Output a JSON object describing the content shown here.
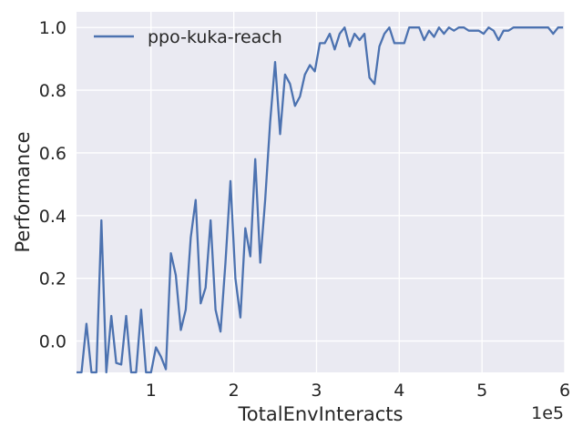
{
  "chart_data": {
    "type": "line",
    "title": "",
    "xlabel": "TotalEnvInteracts",
    "ylabel": "Performance",
    "x_offset_label": "1e5",
    "xlim": [
      0.1,
      6.0
    ],
    "ylim": [
      -0.1,
      1.05
    ],
    "x_ticks": [
      1,
      2,
      3,
      4,
      5,
      6
    ],
    "x_tick_labels": [
      "1",
      "2",
      "3",
      "4",
      "5",
      "6"
    ],
    "y_ticks": [
      0.0,
      0.2,
      0.4,
      0.6,
      0.8,
      1.0
    ],
    "y_tick_labels": [
      "0.0",
      "0.2",
      "0.4",
      "0.6",
      "0.8",
      "1.0"
    ],
    "grid": true,
    "legend_position": "top-left",
    "colors": {
      "background": "#eaeaf2",
      "grid": "#ffffff",
      "line": "#4c72b0"
    },
    "series": [
      {
        "name": "ppo-kuka-reach",
        "x": [
          0.1,
          0.16,
          0.22,
          0.28,
          0.34,
          0.4,
          0.46,
          0.52,
          0.58,
          0.64,
          0.7,
          0.76,
          0.82,
          0.88,
          0.94,
          1.0,
          1.06,
          1.12,
          1.18,
          1.24,
          1.3,
          1.36,
          1.42,
          1.48,
          1.54,
          1.6,
          1.66,
          1.72,
          1.78,
          1.84,
          1.9,
          1.96,
          2.02,
          2.08,
          2.14,
          2.2,
          2.26,
          2.32,
          2.38,
          2.44,
          2.5,
          2.56,
          2.62,
          2.68,
          2.74,
          2.8,
          2.86,
          2.92,
          2.98,
          3.04,
          3.1,
          3.16,
          3.22,
          3.28,
          3.34,
          3.4,
          3.46,
          3.52,
          3.58,
          3.64,
          3.7,
          3.76,
          3.82,
          3.88,
          3.94,
          4.0,
          4.06,
          4.12,
          4.18,
          4.24,
          4.3,
          4.36,
          4.42,
          4.48,
          4.54,
          4.6,
          4.66,
          4.72,
          4.78,
          4.84,
          4.9,
          4.96,
          5.02,
          5.08,
          5.14,
          5.2,
          5.26,
          5.32,
          5.38,
          5.44,
          5.5,
          5.56,
          5.62,
          5.68,
          5.74,
          5.8,
          5.86,
          5.92,
          5.98
        ],
        "values": [
          -0.1,
          -0.1,
          0.055,
          -0.1,
          -0.1,
          0.385,
          -0.1,
          0.08,
          -0.07,
          -0.075,
          0.08,
          -0.1,
          -0.1,
          0.1,
          -0.1,
          -0.1,
          -0.02,
          -0.05,
          -0.09,
          0.28,
          0.21,
          0.035,
          0.1,
          0.33,
          0.45,
          0.12,
          0.17,
          0.385,
          0.1,
          0.03,
          0.25,
          0.51,
          0.2,
          0.075,
          0.36,
          0.27,
          0.58,
          0.25,
          0.45,
          0.7,
          0.89,
          0.66,
          0.85,
          0.82,
          0.75,
          0.78,
          0.85,
          0.88,
          0.86,
          0.95,
          0.95,
          0.98,
          0.93,
          0.98,
          1.0,
          0.94,
          0.98,
          0.96,
          0.98,
          0.84,
          0.82,
          0.94,
          0.98,
          1.0,
          0.95,
          0.95,
          0.95,
          1.0,
          1.0,
          1.0,
          0.96,
          0.99,
          0.97,
          1.0,
          0.98,
          1.0,
          0.99,
          1.0,
          1.0,
          0.99,
          0.99,
          0.99,
          0.98,
          1.0,
          0.99,
          0.96,
          0.99,
          0.99,
          1.0,
          1.0,
          1.0,
          1.0,
          1.0,
          1.0,
          1.0,
          1.0,
          0.98,
          1.0,
          1.0
        ]
      }
    ]
  }
}
